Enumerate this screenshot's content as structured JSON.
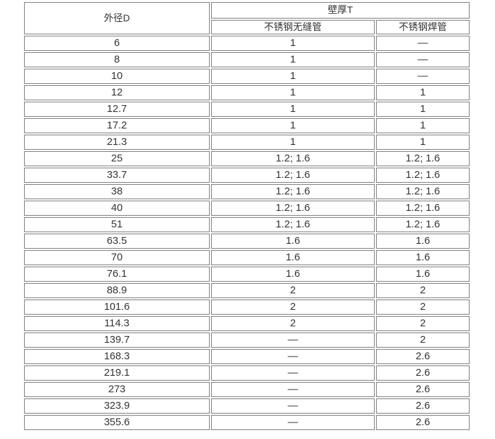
{
  "colors": {
    "border": "#7d7d7d",
    "text": "#333333",
    "background": "#ffffff"
  },
  "table": {
    "col_diameter": "外径D",
    "group_header": "壁厚T",
    "col_seamless": "不锈钢无缝管",
    "col_welded": "不锈钢焊管",
    "rows": [
      {
        "d": "6",
        "seamless": "1",
        "welded": "—"
      },
      {
        "d": "8",
        "seamless": "1",
        "welded": "—"
      },
      {
        "d": "10",
        "seamless": "1",
        "welded": "—"
      },
      {
        "d": "12",
        "seamless": "1",
        "welded": "1"
      },
      {
        "d": "12.7",
        "seamless": "1",
        "welded": "1"
      },
      {
        "d": "17.2",
        "seamless": "1",
        "welded": "1"
      },
      {
        "d": "21.3",
        "seamless": "1",
        "welded": "1"
      },
      {
        "d": "25",
        "seamless": "1.2; 1.6",
        "welded": "1.2; 1.6"
      },
      {
        "d": "33.7",
        "seamless": "1.2; 1.6",
        "welded": "1.2; 1.6"
      },
      {
        "d": "38",
        "seamless": "1.2; 1.6",
        "welded": "1.2; 1.6"
      },
      {
        "d": "40",
        "seamless": "1.2; 1.6",
        "welded": "1.2; 1.6"
      },
      {
        "d": "51",
        "seamless": "1.2; 1.6",
        "welded": "1.2; 1.6"
      },
      {
        "d": "63.5",
        "seamless": "1.6",
        "welded": "1.6"
      },
      {
        "d": "70",
        "seamless": "1.6",
        "welded": "1.6"
      },
      {
        "d": "76.1",
        "seamless": "1.6",
        "welded": "1.6"
      },
      {
        "d": "88.9",
        "seamless": "2",
        "welded": "2"
      },
      {
        "d": "101.6",
        "seamless": "2",
        "welded": "2"
      },
      {
        "d": "114.3",
        "seamless": "2",
        "welded": "2"
      },
      {
        "d": "139.7",
        "seamless": "—",
        "welded": "2"
      },
      {
        "d": "168.3",
        "seamless": "—",
        "welded": "2.6"
      },
      {
        "d": "219.1",
        "seamless": "—",
        "welded": "2.6"
      },
      {
        "d": "273",
        "seamless": "—",
        "welded": "2.6"
      },
      {
        "d": "323.9",
        "seamless": "—",
        "welded": "2.6"
      },
      {
        "d": "355.6",
        "seamless": "—",
        "welded": "2.6"
      }
    ]
  }
}
